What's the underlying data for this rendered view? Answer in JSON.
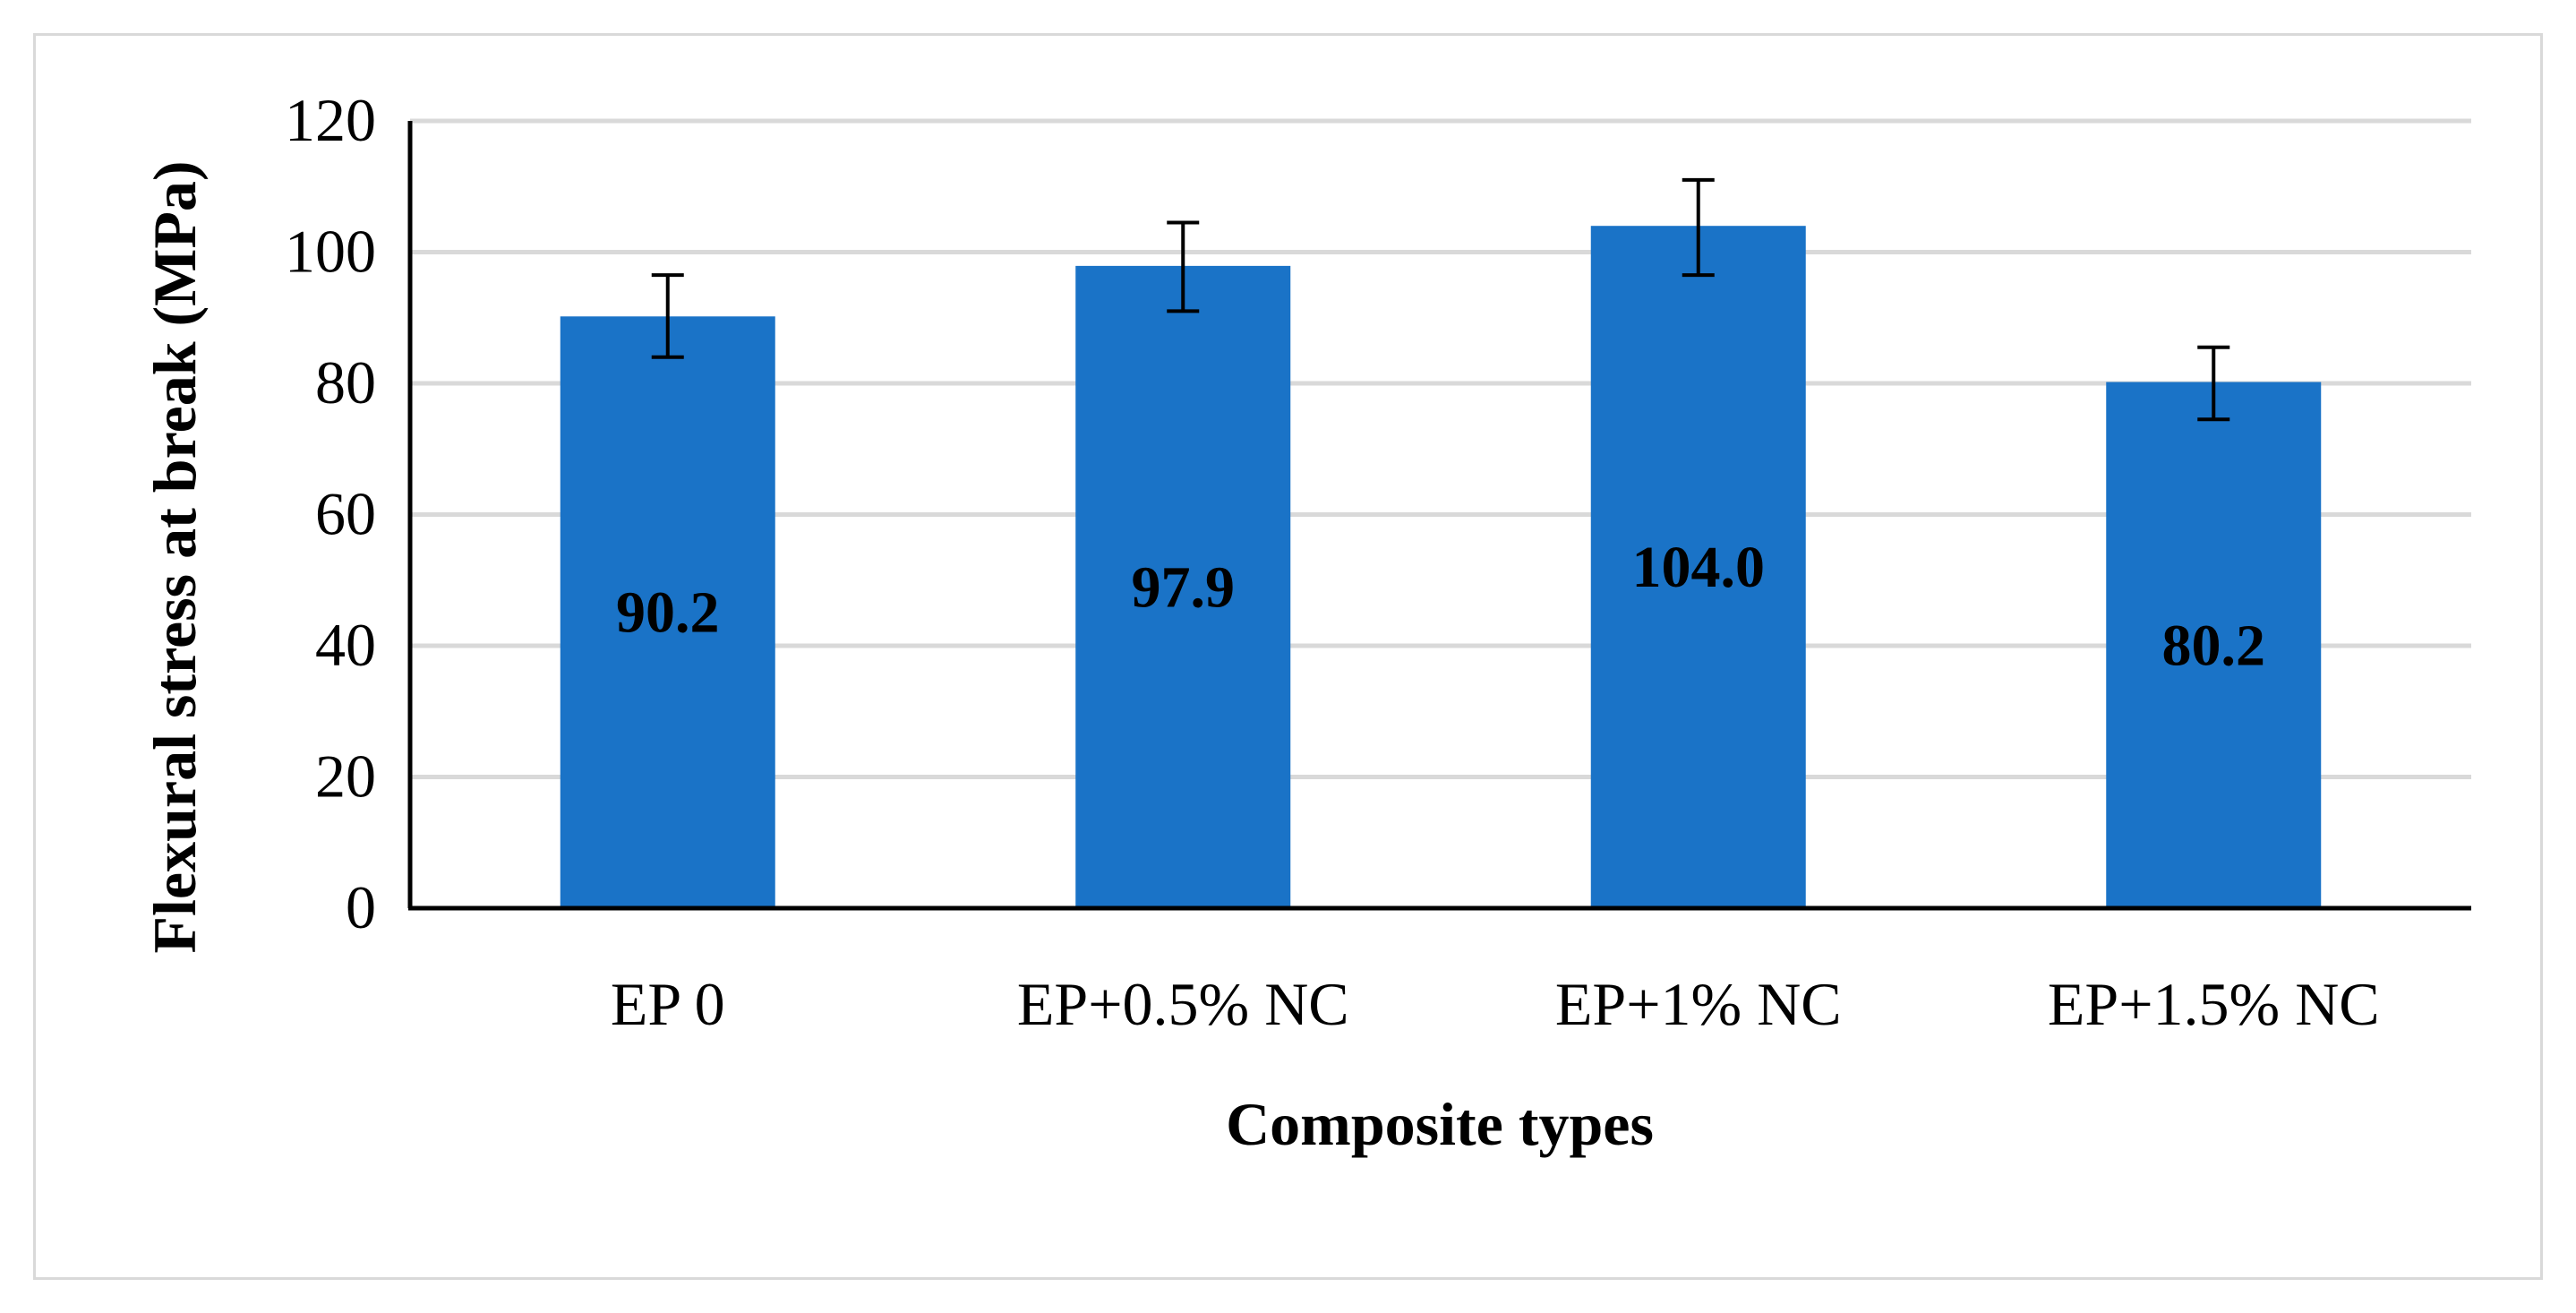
{
  "chart_data": {
    "type": "bar",
    "title": "",
    "xlabel": "Composite types",
    "ylabel": "Flexural stress at break (MPa)",
    "ylim": [
      0,
      120
    ],
    "yticks": [
      0,
      20,
      40,
      60,
      80,
      100,
      120
    ],
    "grid": "horizontal",
    "legend": "none",
    "categories": [
      "EP 0",
      "EP+0.5% NC",
      "EP+1% NC",
      "EP+1.5% NC"
    ],
    "values": [
      90.2,
      97.9,
      104.0,
      80.2
    ],
    "value_labels": [
      "90.2",
      "97.9",
      "104.0",
      "80.2"
    ],
    "error_bars": [
      {
        "low": 84.0,
        "high": 96.5
      },
      {
        "low": 91.0,
        "high": 104.5
      },
      {
        "low": 96.5,
        "high": 111.0
      },
      {
        "low": 74.5,
        "high": 85.5
      }
    ],
    "colors": {
      "bar": "#1a73c7",
      "gridline": "#d9d9d9",
      "axis": "#000000",
      "error_bar": "#000000"
    }
  }
}
